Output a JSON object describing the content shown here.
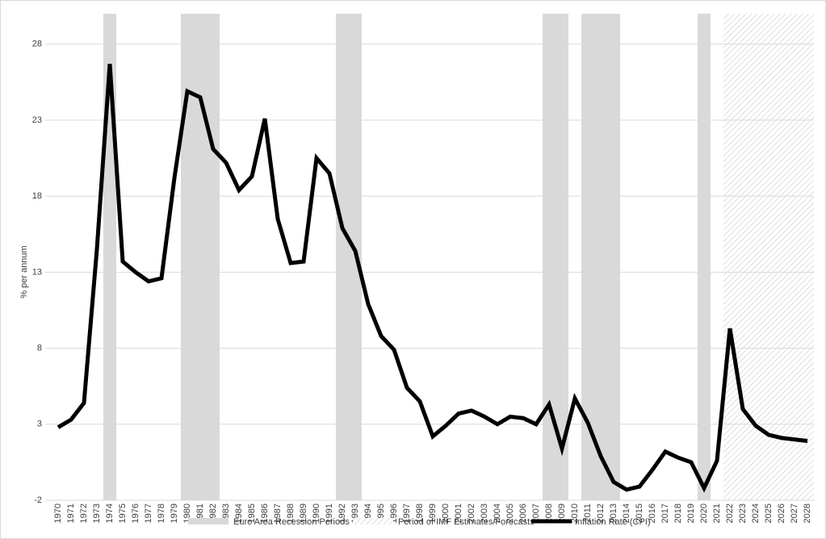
{
  "chart_data": {
    "type": "line",
    "y_label": "% per annum",
    "categories": [
      "1970",
      "1971",
      "1972",
      "1973",
      "1974",
      "1975",
      "1976",
      "1977",
      "1978",
      "1979",
      "1980",
      "1981",
      "1982",
      "1983",
      "1984",
      "1985",
      "1986",
      "1987",
      "1988",
      "1989",
      "1990",
      "1991",
      "1992",
      "1993",
      "1994",
      "1995",
      "1996",
      "1997",
      "1998",
      "1999",
      "2000",
      "2001",
      "2002",
      "2003",
      "2004",
      "2005",
      "2006",
      "2007",
      "2008",
      "2009",
      "2010",
      "2011",
      "2012",
      "2013",
      "2014",
      "2015",
      "2016",
      "2017",
      "2018",
      "2019",
      "2020",
      "2021",
      "2022",
      "2023",
      "2024",
      "2025",
      "2026",
      "2027",
      "2028"
    ],
    "series": [
      {
        "name": "Inflation Rate (CPI)",
        "color": "#000000",
        "values": [
          2.8,
          3.3,
          4.4,
          14.5,
          26.7,
          13.7,
          13.0,
          12.4,
          12.6,
          19.2,
          24.9,
          24.5,
          21.1,
          20.2,
          18.4,
          19.3,
          23.1,
          16.5,
          13.6,
          13.7,
          20.5,
          19.5,
          15.9,
          14.4,
          10.9,
          8.8,
          7.9,
          5.4,
          4.5,
          2.2,
          2.9,
          3.7,
          3.9,
          3.5,
          3.0,
          3.5,
          3.4,
          3.0,
          4.3,
          1.4,
          4.7,
          3.1,
          0.9,
          -0.8,
          -1.3,
          -1.1,
          0.0,
          1.2,
          0.8,
          0.5,
          -1.2,
          0.6,
          9.3,
          4.0,
          2.9,
          2.3,
          2.1,
          2.0,
          1.9
        ]
      }
    ],
    "recessions": {
      "name": "Euro Area Recession Periods",
      "color": "#d9d9d9",
      "periods": [
        {
          "start": "1974",
          "end": "1974"
        },
        {
          "start": "1980",
          "end": "1982"
        },
        {
          "start": "1992",
          "end": "1993"
        },
        {
          "start": "2008",
          "end": "2009"
        },
        {
          "start": "2011",
          "end": "2013"
        },
        {
          "start": "2020",
          "end": "2020"
        }
      ]
    },
    "forecast": {
      "name": "Period of IMF Estimates/Forecasts",
      "start": "2022",
      "end": "2028"
    },
    "ylim": [
      -2,
      30
    ],
    "yticks": [
      -2,
      3,
      8,
      13,
      18,
      23,
      28
    ],
    "grid": true
  }
}
